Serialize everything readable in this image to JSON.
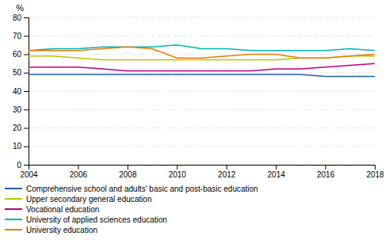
{
  "chart_data": {
    "type": "line",
    "x": [
      2004,
      2005,
      2006,
      2007,
      2008,
      2009,
      2010,
      2011,
      2012,
      2013,
      2014,
      2015,
      2016,
      2017,
      2018
    ],
    "series": [
      {
        "name": "Comprehensive school and adults' basic and post-basic education",
        "color": "#1f5fa6",
        "values": [
          49,
          49,
          49,
          49,
          49,
          49,
          49,
          49,
          49,
          49,
          49,
          49,
          48,
          48,
          48
        ]
      },
      {
        "name": "Upper secondary general education",
        "color": "#aec900",
        "values": [
          59,
          59,
          58,
          57,
          57,
          57,
          57,
          57,
          57,
          57,
          57,
          58,
          58,
          59,
          59
        ]
      },
      {
        "name": "Vocational education",
        "color": "#c0007a",
        "values": [
          53,
          53,
          53,
          52,
          51,
          51,
          51,
          51,
          51,
          51,
          52,
          52,
          53,
          54,
          55
        ]
      },
      {
        "name": "University of applied sciences education",
        "color": "#00b5b5",
        "values": [
          62,
          63,
          63,
          64,
          64,
          64,
          65,
          63,
          63,
          62,
          62,
          62,
          62,
          63,
          62
        ]
      },
      {
        "name": "University education",
        "color": "#f07800",
        "values": [
          62,
          62,
          62,
          63,
          64,
          63,
          58,
          58,
          59,
          60,
          60,
          58,
          58,
          59,
          60
        ]
      }
    ],
    "xlim": [
      2004,
      2018
    ],
    "xticks": [
      2004,
      2006,
      2008,
      2010,
      2012,
      2014,
      2016,
      2018
    ],
    "ylim": [
      0,
      80
    ],
    "yticks": [
      0,
      10,
      20,
      30,
      40,
      50,
      60,
      70,
      80
    ],
    "ylabel": "%",
    "grid": true,
    "legend": "bottom"
  }
}
